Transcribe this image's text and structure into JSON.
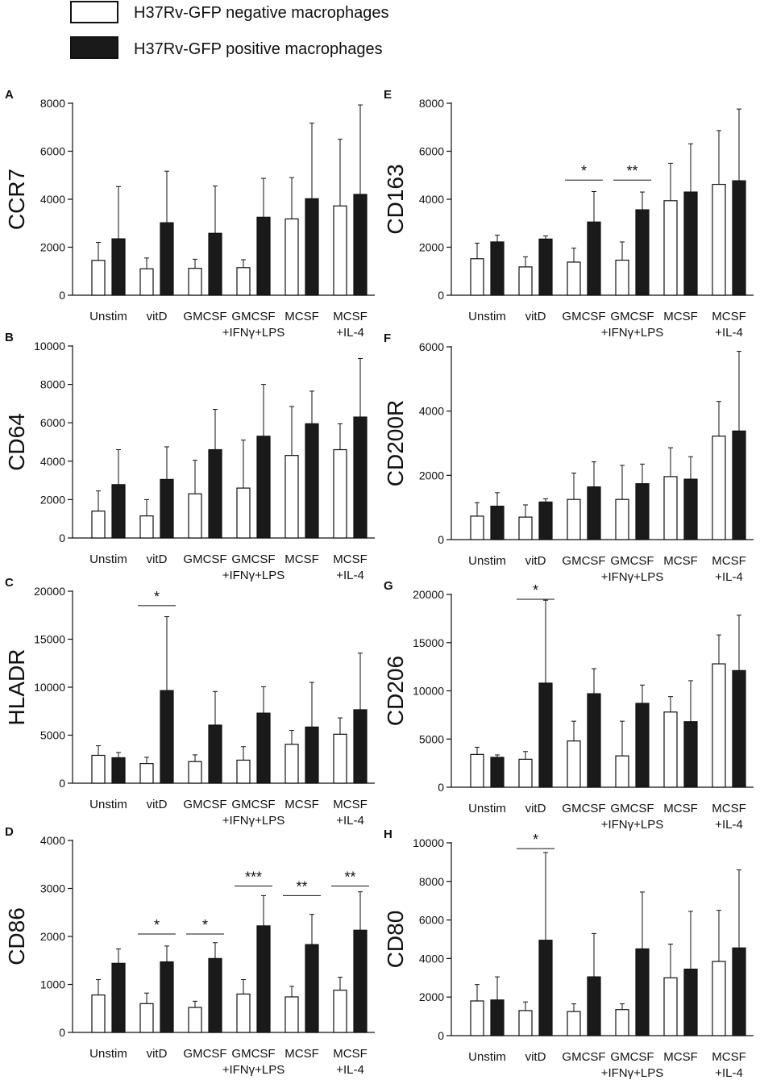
{
  "legend": {
    "negative_label": "H37Rv-GFP negative macrophages",
    "positive_label": "H37Rv-GFP positive macrophages",
    "negative_fill": "#ffffff",
    "positive_fill": "#1a1a1a"
  },
  "categories": [
    [
      "Unstim"
    ],
    [
      "vitD"
    ],
    [
      "GMCSF"
    ],
    [
      "GMCSF",
      "+IFNγ+LPS"
    ],
    [
      "MCSF"
    ],
    [
      "MCSF",
      "+IL-4"
    ]
  ],
  "chart_data": [
    {
      "type": "bar",
      "panel": "A",
      "ylabel": "CCR7",
      "ylim": [
        0,
        8000
      ],
      "ticks": [
        0,
        2000,
        4000,
        6000,
        8000
      ],
      "series": [
        {
          "name": "H37Rv-GFP negative macrophages",
          "values": [
            1450,
            1100,
            1120,
            1150,
            3180,
            3720
          ],
          "errors": [
            750,
            450,
            380,
            330,
            1720,
            2780
          ]
        },
        {
          "name": "H37Rv-GFP positive macrophages",
          "values": [
            2350,
            3020,
            2580,
            3250,
            4020,
            4200
          ],
          "errors": [
            2180,
            2150,
            1970,
            1620,
            3150,
            3730
          ]
        }
      ],
      "significance": []
    },
    {
      "type": "bar",
      "panel": "B",
      "ylabel": "CD64",
      "ylim": [
        0,
        10000
      ],
      "ticks": [
        0,
        2000,
        4000,
        6000,
        8000,
        10000
      ],
      "series": [
        {
          "name": "H37Rv-GFP negative macrophages",
          "values": [
            1400,
            1150,
            2300,
            2600,
            4300,
            4600
          ],
          "errors": [
            1050,
            850,
            1750,
            2500,
            2550,
            1350
          ]
        },
        {
          "name": "H37Rv-GFP positive macrophages",
          "values": [
            2780,
            3050,
            4600,
            5300,
            5950,
            6300
          ],
          "errors": [
            1820,
            1700,
            2100,
            2700,
            1700,
            3050
          ]
        }
      ],
      "significance": []
    },
    {
      "type": "bar",
      "panel": "C",
      "ylabel": "HLADR",
      "ylim": [
        0,
        20000
      ],
      "ticks": [
        0,
        5000,
        10000,
        15000,
        20000
      ],
      "series": [
        {
          "name": "H37Rv-GFP negative macrophages",
          "values": [
            2900,
            2050,
            2250,
            2400,
            4050,
            5100
          ],
          "errors": [
            1000,
            650,
            700,
            1400,
            1450,
            1700
          ]
        },
        {
          "name": "H37Rv-GFP positive macrophages",
          "values": [
            2650,
            9650,
            6050,
            7300,
            5850,
            7650
          ],
          "errors": [
            550,
            7700,
            3500,
            2750,
            4650,
            5900
          ]
        }
      ],
      "significance": [
        {
          "group": 1,
          "label": "*",
          "level": 18500
        }
      ]
    },
    {
      "type": "bar",
      "panel": "D",
      "ylabel": "CD86",
      "ylim": [
        0,
        4000
      ],
      "ticks": [
        0,
        1000,
        2000,
        3000,
        4000
      ],
      "series": [
        {
          "name": "H37Rv-GFP negative macrophages",
          "values": [
            780,
            600,
            520,
            800,
            740,
            880
          ],
          "errors": [
            320,
            220,
            130,
            300,
            220,
            270
          ]
        },
        {
          "name": "H37Rv-GFP positive macrophages",
          "values": [
            1440,
            1470,
            1540,
            2220,
            1830,
            2130
          ],
          "errors": [
            300,
            330,
            330,
            630,
            630,
            800
          ]
        }
      ],
      "significance": [
        {
          "group": 1,
          "label": "*",
          "level": 2050
        },
        {
          "group": 2,
          "label": "*",
          "level": 2050
        },
        {
          "group": 3,
          "label": "***",
          "level": 3050
        },
        {
          "group": 4,
          "label": "**",
          "level": 2850
        },
        {
          "group": 5,
          "label": "**",
          "level": 3050
        }
      ]
    },
    {
      "type": "bar",
      "panel": "E",
      "ylabel": "CD163",
      "ylim": [
        0,
        8000
      ],
      "ticks": [
        0,
        2000,
        4000,
        6000,
        8000
      ],
      "series": [
        {
          "name": "H37Rv-GFP negative macrophages",
          "values": [
            1520,
            1180,
            1380,
            1460,
            3940,
            4620
          ],
          "errors": [
            650,
            420,
            580,
            760,
            1560,
            2240
          ]
        },
        {
          "name": "H37Rv-GFP positive macrophages",
          "values": [
            2220,
            2340,
            3050,
            3560,
            4300,
            4770
          ],
          "errors": [
            280,
            130,
            1270,
            740,
            2010,
            2990
          ]
        }
      ],
      "significance": [
        {
          "group": 2,
          "label": "*",
          "level": 4800
        },
        {
          "group": 3,
          "label": "**",
          "level": 4800
        }
      ]
    },
    {
      "type": "bar",
      "panel": "F",
      "ylabel": "CD200R",
      "ylim": [
        0,
        6000
      ],
      "ticks": [
        0,
        2000,
        4000,
        6000
      ],
      "series": [
        {
          "name": "H37Rv-GFP negative macrophages",
          "values": [
            730,
            700,
            1250,
            1250,
            1960,
            3220
          ],
          "errors": [
            420,
            380,
            820,
            1060,
            900,
            1080
          ]
        },
        {
          "name": "H37Rv-GFP positive macrophages",
          "values": [
            1040,
            1170,
            1640,
            1740,
            1880,
            3380
          ],
          "errors": [
            420,
            100,
            780,
            610,
            700,
            2480
          ]
        }
      ],
      "significance": []
    },
    {
      "type": "bar",
      "panel": "G",
      "ylabel": "CD206",
      "ylim": [
        0,
        20000
      ],
      "ticks": [
        0,
        5000,
        10000,
        15000,
        20000
      ],
      "series": [
        {
          "name": "H37Rv-GFP negative macrophages",
          "values": [
            3400,
            2900,
            4800,
            3250,
            7800,
            12800
          ],
          "errors": [
            750,
            800,
            2050,
            3600,
            1600,
            3000
          ]
        },
        {
          "name": "H37Rv-GFP positive macrophages",
          "values": [
            3100,
            10800,
            9700,
            8700,
            6800,
            12100
          ],
          "errors": [
            250,
            8600,
            2600,
            1900,
            4250,
            5750
          ]
        }
      ],
      "significance": [
        {
          "group": 1,
          "label": "*",
          "level": 19500
        }
      ]
    },
    {
      "type": "bar",
      "panel": "H",
      "ylabel": "CD80",
      "ylim": [
        0,
        10000
      ],
      "ticks": [
        0,
        2000,
        4000,
        6000,
        8000,
        10000
      ],
      "series": [
        {
          "name": "H37Rv-GFP negative macrophages",
          "values": [
            1800,
            1300,
            1250,
            1350,
            3000,
            3850
          ],
          "errors": [
            850,
            450,
            400,
            300,
            1750,
            2650
          ]
        },
        {
          "name": "H37Rv-GFP positive macrophages",
          "values": [
            1850,
            4950,
            3050,
            4500,
            3450,
            4550
          ],
          "errors": [
            1200,
            4550,
            2250,
            2950,
            3000,
            4050
          ]
        }
      ],
      "significance": [
        {
          "group": 1,
          "label": "*",
          "level": 9700
        }
      ]
    }
  ]
}
